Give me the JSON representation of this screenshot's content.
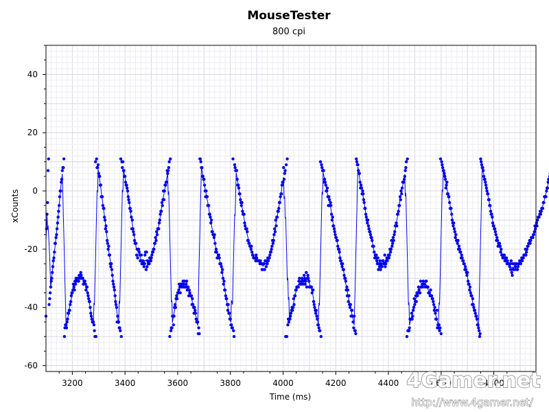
{
  "chart_data": {
    "type": "line",
    "title": "MouseTester",
    "subtitle": "800 cpi",
    "xlabel": "Time (ms)",
    "ylabel": "xCounts",
    "xlim": [
      3100,
      4960
    ],
    "ylim": [
      -62,
      50
    ],
    "x_ticks": [
      3200,
      3400,
      3600,
      3800,
      4000,
      4200,
      4400,
      4600,
      4800
    ],
    "y_ticks": [
      40,
      20,
      0,
      -20,
      -40,
      -60
    ],
    "grid": true,
    "colors": {
      "series": "#0000ee",
      "grid_major": "#d6d6e6",
      "grid_minor": "#ececf4",
      "plot_border": "#000000"
    },
    "series": [
      {
        "style": "points+line",
        "x_start": 3100,
        "x_step": 2,
        "y_compact": "7bgkvzBDFHJKMOQRTWWYZbdfhjmoorsvwwz03443568899BCEFFGIHGJIKJKKKJLLKMLKKKIJJJIGHHFEDCCA876555420y0zwwxuttqqmmmjiifebcaXWUVSSPOPNLJIHGECBA5755332z0ywyvvttrqqpomlkiihfbebaZXWWWSURUUTSQQSPPQPOPSTNTOQPPPRQQRSTTUUWWYXaZbbbdeghhkjloloqqrrvuvwy0z2337747ABADEDFFGIHFIHIHJIHJHHIJGHHEGFEEEBDBA8A986555131zzywwttssqomommjjjggfdeaaZZYZWTUTRRSSRPPPOMNKIJGGEDDB9B88664433z20xwvvvsqqpnnlkjkhgggdcbbbaXXWWVVUVTSSRRRRQSRQQQQQPQPPNNPPPNQQOQPRQRRSTTUVXWXZbaecffhhikkmnnqrrwsuv0x0z46566789A9ADBEEGGHHHHJKIIIJKJIJLKIJMHKLKJHHHHHFGGCBA9897644322y0xwvvvrsrqoopmjmljkjgefccbaZYYXXVUUTRQQPOPNNLKKJGHEGCEBAB7997537221zyxxvuurpqpnonlkiigfedecbaaZYYXVVVTRSRSQPRNPOQNPOOQQPPSOPQRQRSRSUTUXVWYXZaccdcgghjjmlonprrrstvwy0z22236668679ADBCECFEFHGFFJHHIHJIIIHJJHHHFFFEGEEDDCB9A8669343423z1yxwvvutspqrnnmmkiiigedcdbaYZXXWXUVUTTRSRQQPPNONMLMJIIGHFEEBDBA998776443201zyxwwvtssrqponnlljjhggfdccbbaZXYXVWVWVTUSSRRSSQRQRPQPPPOPNQMLPNPPNOPPNNOPPQQPQRQRRSSSUSTUVVWWXWXYYYYZZacbcdcefffghghiiikkmmmmopprsstuwvwzzzz233445656678999ABBBCCDDDEEEEFFFGGGGFGHGGHHIIIGGGGHHGHIGGHHGGFEEFEEDCCCBA9897766543210zzyxwvutssrqoomlkjjihgfeedcbbaZZYYXXWVVVUTTTSSSRQRQQQPPPPOPOONNNMMNMMMLLLLLMNLMLLLLLMLMMMMMMNMOMMNNOPPPPQQRRRSSTTUVVWWXYYZZabbccdefgghijkklmmnoopqrrstuvwxyz00123345677889AABBCCCDDEEEFFFFGGGGHHGGGHHHHHHHHGGGGGGGFFFEEEDDDCCBBAA998776654332100zyxxwvuttsrqqponnmlkjjihgggfedccbaaaZYYYXWWVVVUUTTTSSSSRRRRQQQQQQQQPPPPPPPPPPPPPPPPPQQQQQQQRRRRRSSSTTTUUUVVWWXXXYZZaabbcdeefghhijjklmnnopqqrsttuvwxyzz0123345567789",
        "y_offset": -50
      }
    ]
  },
  "watermark": {
    "logo": "4Gamer.net",
    "url": "http://www.4gamer.net/"
  }
}
